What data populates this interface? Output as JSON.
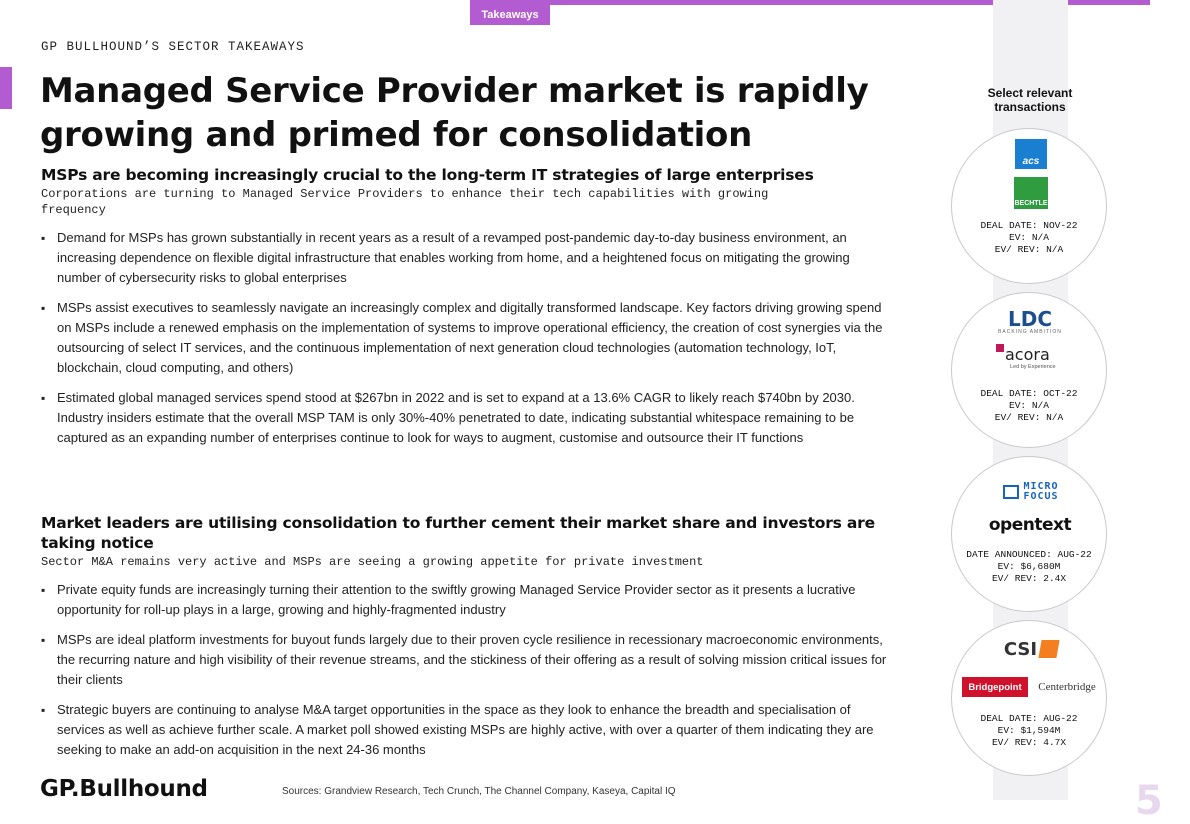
{
  "header": {
    "tab_label": "Takeaways",
    "sector_label": "GP BULLHOUND’S SECTOR TAKEAWAYS",
    "title": "Managed Service Provider market is rapidly growing and primed for consolidation"
  },
  "sections": [
    {
      "heading": "MSPs are becoming increasingly crucial to the long-term IT strategies of large enterprises",
      "subheading": "Corporations are turning to Managed Service Providers to enhance their tech capabilities with growing frequency",
      "bullets": [
        "Demand for MSPs has grown substantially in recent years as a result of a revamped post-pandemic day-to-day business environment, an increasing dependence on flexible digital infrastructure that enables working from home, and a heightened focus on mitigating the growing number of cybersecurity risks to global enterprises",
        "MSPs assist executives to seamlessly navigate an increasingly complex and digitally transformed landscape. Key factors driving growing spend on MSPs include a renewed emphasis on the implementation of systems to improve operational efficiency, the creation of cost synergies via the outsourcing of select IT services, and the continuous implementation of next generation cloud technologies (automation technology, IoT, blockchain, cloud computing, and others)",
        "Estimated global managed services spend stood at $267bn in 2022 and is set to expand at a 13.6% CAGR to likely reach $740bn by 2030. Industry insiders estimate that the overall MSP TAM is only 30%-40% penetrated to date, indicating substantial whitespace remaining to be captured as an expanding number of enterprises continue to look for ways to augment, customise and outsource their IT functions"
      ]
    },
    {
      "heading": "Market leaders are utilising consolidation to further cement their market share and investors are taking notice",
      "subheading": "Sector M&A remains very active and MSPs are seeing a growing appetite for private investment",
      "bullets": [
        "Private equity funds are increasingly turning their attention to the swiftly growing Managed Service Provider sector as it presents a lucrative opportunity for roll-up plays in a large, growing and highly-fragmented industry",
        "MSPs are ideal platform investments for buyout funds largely due to their proven cycle resilience in recessionary macroeconomic environments, the recurring nature and high visibility of their revenue streams, and the stickiness of their offering as a result of solving mission critical issues for their clients",
        "Strategic buyers are continuing to analyse M&A target opportunities in the space as they look to enhance the breadth and specialisation of services as well as achieve further scale. A market poll showed existing MSPs are highly active, with over a quarter of them indicating they are seeking to make an add-on acquisition in the next 24-36 months"
      ]
    }
  ],
  "transactions": {
    "heading": "Select relevant transactions",
    "deals": [
      {
        "logos": [
          "acs",
          "BECHTLE"
        ],
        "lines": [
          "DEAL DATE: NOV-22",
          "EV: N/A",
          "EV/ REV: N/A"
        ]
      },
      {
        "logos": [
          "LDC",
          "BACKING AMBITION",
          "acora",
          "Led by Experience"
        ],
        "lines": [
          "DEAL DATE: OCT-22",
          "EV: N/A",
          "EV/ REV: N/A"
        ]
      },
      {
        "logos": [
          "MICRO",
          "FOCUS",
          "opentext"
        ],
        "lines": [
          "DATE ANNOUNCED: AUG-22",
          "EV: $6,680M",
          "EV/ REV: 2.4X"
        ]
      },
      {
        "logos": [
          "CSI",
          "Bridgepoint",
          "Centerbridge"
        ],
        "lines": [
          "DEAL DATE: AUG-22",
          "EV: $1,594M",
          "EV/ REV: 4.7X"
        ]
      }
    ]
  },
  "footer": {
    "brand": "GP.Bullhound",
    "sources": "Sources: Grandview Research, Tech Crunch, The Channel Company, Kaseya, Capital IQ",
    "page_number": "5"
  },
  "colors": {
    "accent": "#b35bd0",
    "panel": "#f1f1f3"
  }
}
